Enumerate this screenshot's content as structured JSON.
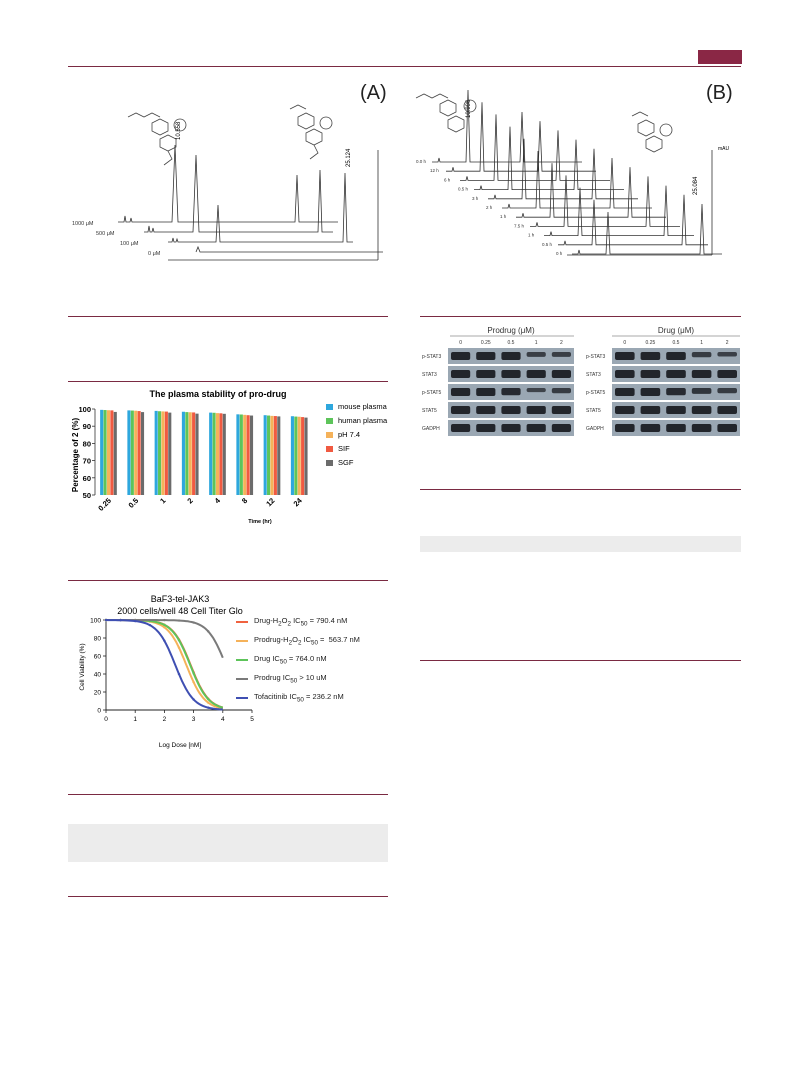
{
  "header": {
    "accent_color": "#8a2745"
  },
  "fig_a": {
    "label": "(A)",
    "peak_labels": [
      "10.558",
      "25.124"
    ],
    "trace_labels": [
      "1000 μM",
      "500 μM",
      "100 μM",
      "0 μM"
    ]
  },
  "fig_b": {
    "label": "(B)",
    "peak_labels": [
      "10.996",
      "25.084"
    ],
    "trace_labels": [
      "0.0 h",
      "12 h",
      "6 h",
      "0.5 h",
      "3 h",
      "2 h",
      "1 h",
      "7.5 h",
      "1 h",
      "0.5 h",
      "0 h"
    ],
    "y_unit": "mAU"
  },
  "plasma_chart": {
    "chart_data": {
      "type": "bar",
      "title": "The plasma stability of pro-drug",
      "xlabel": "Time (hr)",
      "ylabel": "Percentage of 2 (%)",
      "ylim": [
        50,
        100
      ],
      "yticks": [
        "100",
        "90",
        "80",
        "70",
        "60",
        "50"
      ],
      "categories": [
        "0.25",
        "0.5",
        "1",
        "2",
        "4",
        "8",
        "12",
        "24"
      ],
      "legend_position": "right",
      "series": [
        {
          "name": "mouse plasma",
          "color": "#2ea7dd",
          "values": [
            99.5,
            99.2,
            98.9,
            98.4,
            97.9,
            96.9,
            96.4,
            95.8
          ]
        },
        {
          "name": "human plasma",
          "color": "#5dc45a",
          "values": [
            99.4,
            99.1,
            98.7,
            98.2,
            97.8,
            96.8,
            96.2,
            95.6
          ]
        },
        {
          "name": "pH 7.4",
          "color": "#f5b25a",
          "values": [
            99.3,
            99.0,
            98.6,
            98.1,
            97.6,
            96.6,
            96.0,
            95.5
          ]
        },
        {
          "name": "SIF",
          "color": "#f05a41",
          "values": [
            99.2,
            98.8,
            98.5,
            98.0,
            97.5,
            96.4,
            95.9,
            95.3
          ]
        },
        {
          "name": "SGF",
          "color": "#6b6b6b",
          "values": [
            98.3,
            98.2,
            97.9,
            97.3,
            97.2,
            96.2,
            95.7,
            95.0
          ]
        }
      ]
    }
  },
  "viability_chart": {
    "chart_data": {
      "type": "line",
      "title": "BaF3-tel-JAK3",
      "subtitle": "2000 cells/well 48 Cell Titer Glo",
      "xlabel": "Log Dose [nM]",
      "ylabel": "Cell Viability (%)",
      "xlim": [
        0,
        5
      ],
      "ylim": [
        0,
        100
      ],
      "xticks": [
        "0",
        "1",
        "2",
        "3",
        "4",
        "5"
      ],
      "yticks": [
        "0",
        "20",
        "40",
        "60",
        "80",
        "100"
      ],
      "series": [
        {
          "name": "Drug-H2O2 IC50 = 790.4 nM",
          "color": "#f0623f",
          "logIC50": 2.898,
          "top": 100,
          "hill": 1.4
        },
        {
          "name": "Prodrug-H2O2 IC50 = 563.7 nM",
          "color": "#f5b25a",
          "logIC50": 2.751,
          "top": 100,
          "hill": 1.4
        },
        {
          "name": "Drug IC50 = 764.0 nM",
          "color": "#5dc45a",
          "logIC50": 2.883,
          "top": 100,
          "hill": 1.4
        },
        {
          "name": "Prodrug IC50 > 10 uM",
          "color": "#7a7a7a",
          "logIC50": 4.1,
          "top": 100,
          "hill": 1.4
        },
        {
          "name": "Tofacitinib IC50 = 236.2 nM",
          "color": "#3f4fb2",
          "logIC50": 2.373,
          "top": 100,
          "hill": 1.4
        }
      ]
    },
    "legend": [
      {
        "text_html": "Drug-H<sub>2</sub>O<sub>2</sub> IC<sub>50</sub> = 790.4 nM"
      },
      {
        "text_html": "Prodrug-H<sub>2</sub>O<sub>2</sub> IC<sub>50</sub> = &nbsp;563.7 nM"
      },
      {
        "text_html": "Drug IC<sub>50</sub> = 764.0 nM"
      },
      {
        "text_html": "Prodrug IC<sub>50</sub> &gt; 10 uM"
      },
      {
        "text_html": "Tofacitinib IC<sub>50</sub> = 236.2 nM"
      }
    ]
  },
  "western": {
    "prodrug_title": "Prodrug (μM)",
    "drug_title": "Drug (μM)",
    "concentrations": [
      "0",
      "0.25",
      "0.5",
      "1",
      "2"
    ],
    "rows": [
      "p-STAT3",
      "STAT3",
      "p-STAT5",
      "STAT5",
      "GADPH"
    ]
  }
}
